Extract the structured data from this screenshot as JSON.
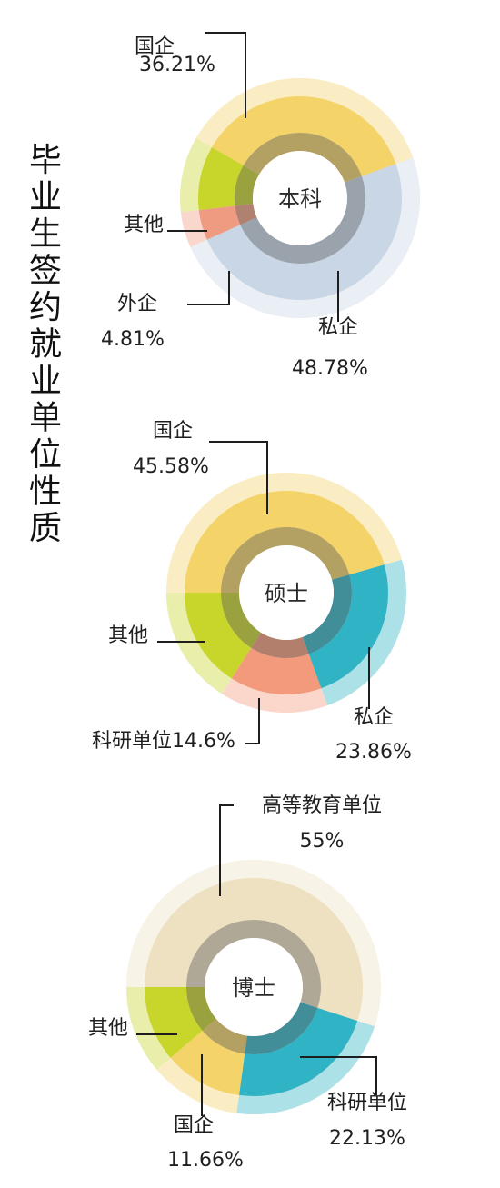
{
  "title": "毕业生签约就业单位性质",
  "chart_data": [
    {
      "type": "pie",
      "center_label": "本科",
      "slices": [
        {
          "name": "国企",
          "value": 36.21,
          "label": "36.21%",
          "color": "#f4d369"
        },
        {
          "name": "私企",
          "value": 48.78,
          "label": "48.78%",
          "color": "#c8d6e6"
        },
        {
          "name": "外企",
          "value": 4.81,
          "label": "4.81%",
          "color": "#ef9b82"
        },
        {
          "name": "其他",
          "value": 10.2,
          "label": "",
          "color": "#c8d52b"
        }
      ]
    },
    {
      "type": "pie",
      "center_label": "硕士",
      "slices": [
        {
          "name": "国企",
          "value": 45.58,
          "label": "45.58%",
          "color": "#f4d369"
        },
        {
          "name": "私企",
          "value": 23.86,
          "label": "23.86%",
          "color": "#2fb3c5"
        },
        {
          "name": "科研单位",
          "value": 14.6,
          "label": "14.6%",
          "color": "#f29a7b"
        },
        {
          "name": "其他",
          "value": 15.96,
          "label": "",
          "color": "#c8d52b"
        }
      ]
    },
    {
      "type": "pie",
      "center_label": "博士",
      "slices": [
        {
          "name": "高等教育单位",
          "value": 55,
          "label": "55%",
          "color": "#eee1c2"
        },
        {
          "name": "科研单位",
          "value": 22.13,
          "label": "22.13%",
          "color": "#2fb3c5"
        },
        {
          "name": "国企",
          "value": 11.66,
          "label": "11.66%",
          "color": "#f4d369"
        },
        {
          "name": "其他",
          "value": 11.21,
          "label": "",
          "color": "#c8d52b"
        }
      ]
    }
  ]
}
